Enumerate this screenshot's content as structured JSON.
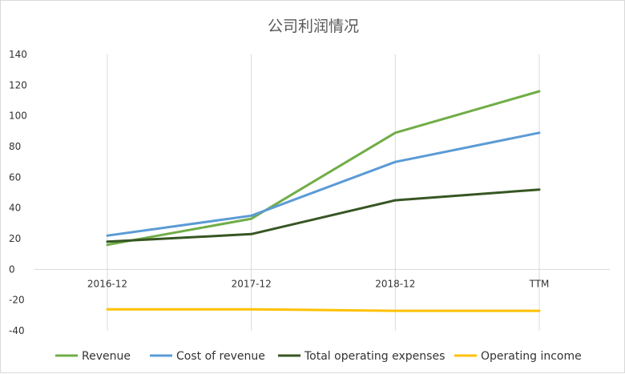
{
  "chart_data": {
    "type": "line",
    "title": "公司利润情况",
    "xlabel": "",
    "ylabel": "",
    "categories": [
      "2016-12",
      "2017-12",
      "2018-12",
      "TTM"
    ],
    "ylim": [
      -40,
      140
    ],
    "yticks": [
      -40,
      -20,
      0,
      20,
      40,
      60,
      80,
      100,
      120,
      140
    ],
    "grid": "vertical",
    "legend": "bottom",
    "series": [
      {
        "name": "Revenue",
        "color": "#70ad47",
        "values": [
          16,
          33,
          89,
          116
        ]
      },
      {
        "name": "Cost of revenue",
        "color": "#5b9bd5",
        "values": [
          22,
          35,
          70,
          89
        ]
      },
      {
        "name": "Total operating expenses",
        "color": "#375623",
        "values": [
          18,
          23,
          45,
          52
        ]
      },
      {
        "name": "Operating income",
        "color": "#ffc000",
        "values": [
          -26,
          -26,
          -27,
          -27
        ]
      }
    ]
  }
}
